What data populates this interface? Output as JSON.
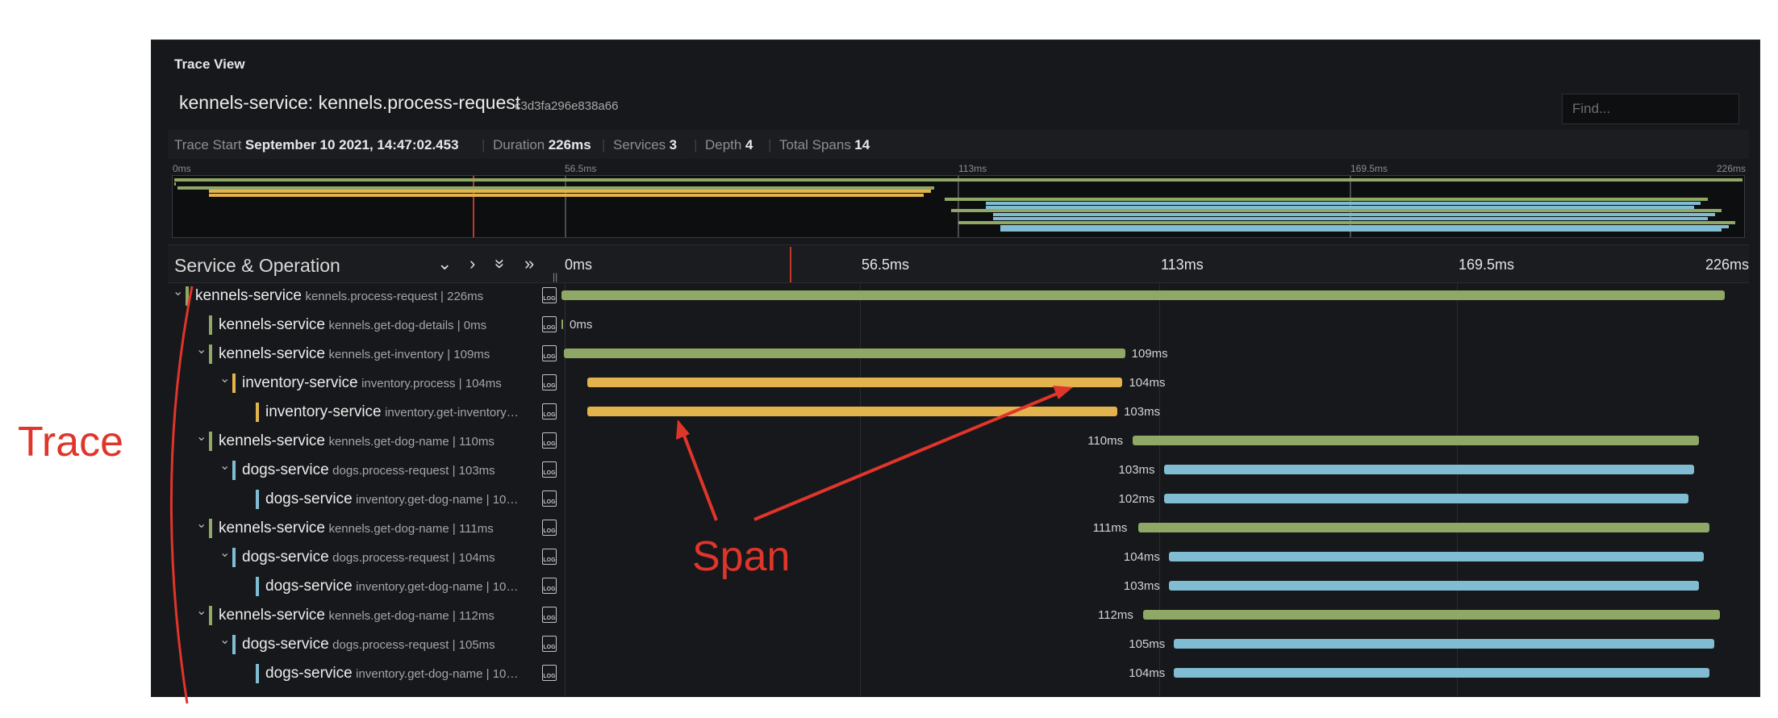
{
  "panel": {
    "title": "Trace View",
    "trace_title": "kennels-service: kennels.process-request",
    "trace_id": "c3d3fa296e838a66",
    "find_placeholder": "Find..."
  },
  "meta": {
    "trace_start_label": "Trace Start",
    "trace_start_value": "September 10 2021, 14:47:02.453",
    "duration_label": "Duration",
    "duration_value": "226ms",
    "services_label": "Services",
    "services_value": "3",
    "depth_label": "Depth",
    "depth_value": "4",
    "total_spans_label": "Total Spans",
    "total_spans_value": "14"
  },
  "minimap": {
    "ticks": [
      "0ms",
      "56.5ms",
      "113ms",
      "169.5ms",
      "226ms"
    ]
  },
  "timeline": {
    "header_label": "Service & Operation",
    "ticks": [
      "0ms",
      "56.5ms",
      "113ms",
      "169.5ms",
      "226ms"
    ],
    "total_ms": 226
  },
  "colors": {
    "kennels-service": "#8fa865",
    "inventory-service": "#e3b34d",
    "dogs-service": "#80bdd2",
    "annotation": "#e0352b"
  },
  "spans": [
    {
      "service": "kennels-service",
      "op": "kennels.process-request | 226ms",
      "depth": 0,
      "collapsible": true,
      "start_ms": 0,
      "duration_ms": 226,
      "label": ""
    },
    {
      "service": "kennels-service",
      "op": "kennels.get-dog-details | 0ms",
      "depth": 1,
      "collapsible": false,
      "start_ms": 0,
      "duration_ms": 0,
      "label": "0ms"
    },
    {
      "service": "kennels-service",
      "op": "kennels.get-inventory | 109ms",
      "depth": 1,
      "collapsible": true,
      "start_ms": 0.5,
      "duration_ms": 109,
      "label": "109ms"
    },
    {
      "service": "inventory-service",
      "op": "inventory.process | 104ms",
      "depth": 2,
      "collapsible": true,
      "start_ms": 5,
      "duration_ms": 104,
      "label": "104ms"
    },
    {
      "service": "inventory-service",
      "op": "inventory.get-inventory…",
      "depth": 3,
      "collapsible": false,
      "start_ms": 5,
      "duration_ms": 103,
      "label": "103ms"
    },
    {
      "service": "kennels-service",
      "op": "kennels.get-dog-name | 110ms",
      "depth": 1,
      "collapsible": true,
      "start_ms": 111,
      "duration_ms": 110,
      "label": "110ms"
    },
    {
      "service": "dogs-service",
      "op": "dogs.process-request | 103ms",
      "depth": 2,
      "collapsible": true,
      "start_ms": 117,
      "duration_ms": 103,
      "label": "103ms"
    },
    {
      "service": "dogs-service",
      "op": "inventory.get-dog-name | 10…",
      "depth": 3,
      "collapsible": false,
      "start_ms": 117,
      "duration_ms": 102,
      "label": "102ms"
    },
    {
      "service": "kennels-service",
      "op": "kennels.get-dog-name | 111ms",
      "depth": 1,
      "collapsible": true,
      "start_ms": 112,
      "duration_ms": 111,
      "label": "111ms"
    },
    {
      "service": "dogs-service",
      "op": "dogs.process-request | 104ms",
      "depth": 2,
      "collapsible": true,
      "start_ms": 118,
      "duration_ms": 104,
      "label": "104ms"
    },
    {
      "service": "dogs-service",
      "op": "inventory.get-dog-name | 10…",
      "depth": 3,
      "collapsible": false,
      "start_ms": 118,
      "duration_ms": 103,
      "label": "103ms"
    },
    {
      "service": "kennels-service",
      "op": "kennels.get-dog-name | 112ms",
      "depth": 1,
      "collapsible": true,
      "start_ms": 113,
      "duration_ms": 112,
      "label": "112ms"
    },
    {
      "service": "dogs-service",
      "op": "dogs.process-request | 105ms",
      "depth": 2,
      "collapsible": true,
      "start_ms": 119,
      "duration_ms": 105,
      "label": "105ms"
    },
    {
      "service": "dogs-service",
      "op": "inventory.get-dog-name | 10…",
      "depth": 3,
      "collapsible": false,
      "start_ms": 119,
      "duration_ms": 104,
      "label": "104ms"
    }
  ],
  "annotations": {
    "trace_label": "Trace",
    "span_label": "Span"
  },
  "icons": {
    "log": "LOG",
    "chevron_down": "⌄",
    "chevron_right": "›",
    "double_chevron_down": "»",
    "double_chevron_right": "»"
  }
}
